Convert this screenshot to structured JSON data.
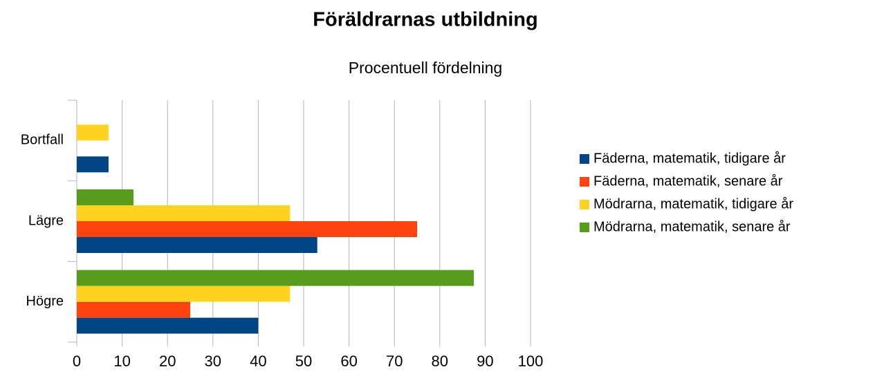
{
  "chart_data": {
    "type": "hbar",
    "title": "Föräldrarnas utbildning",
    "subtitle": "Procentuell fördelning",
    "categories": [
      "Högre",
      "Lägre",
      "Bortfall"
    ],
    "series": [
      {
        "name": "Fäderna, matematik, tidigare år",
        "color": "#004586",
        "values": [
          40,
          53,
          7
        ]
      },
      {
        "name": "Fäderna, matematik, senare år",
        "color": "#ff420e",
        "values": [
          25,
          75,
          0
        ]
      },
      {
        "name": "Mödrarna, matematik, tidigare år",
        "color": "#ffd320",
        "values": [
          47,
          47,
          7
        ]
      },
      {
        "name": "Mödrarna, matematik, senare år",
        "color": "#579d1c",
        "values": [
          87.5,
          12.5,
          0
        ]
      }
    ],
    "xlim": [
      0,
      100
    ],
    "xticks": [
      0,
      10,
      20,
      30,
      40,
      50,
      60,
      70,
      80,
      90,
      100
    ],
    "grid": true,
    "legend": "right"
  }
}
